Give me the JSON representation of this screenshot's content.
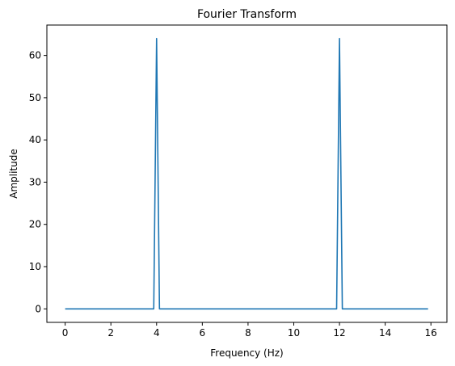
{
  "chart_data": {
    "type": "line",
    "title": "Fourier Transform",
    "xlabel": "Frequency (Hz)",
    "ylabel": "Amplitude",
    "xlim": [
      -0.8,
      16.7
    ],
    "ylim": [
      -3.2,
      67.2
    ],
    "xticks": [
      0,
      2,
      4,
      6,
      8,
      10,
      12,
      14,
      16
    ],
    "yticks": [
      0,
      10,
      20,
      30,
      40,
      50,
      60
    ],
    "grid": false,
    "line_color": "#1f77b4",
    "series": [
      {
        "x": [
          0,
          1,
          2,
          3,
          3.875,
          4,
          4.125,
          5,
          6,
          7,
          8,
          9,
          10,
          11,
          11.875,
          12,
          12.125,
          13,
          14,
          15,
          15.875
        ],
        "y": [
          0,
          0,
          0,
          0,
          0,
          64,
          0,
          0,
          0,
          0,
          0,
          0,
          0,
          0,
          0,
          64,
          0,
          0,
          0,
          0,
          0
        ]
      }
    ]
  }
}
